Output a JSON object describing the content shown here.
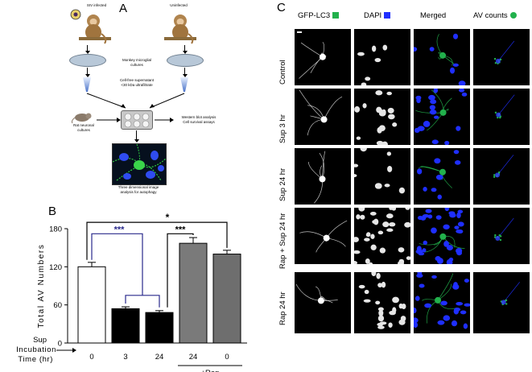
{
  "panels": {
    "a": "A",
    "b": "B",
    "c": "C"
  },
  "schematic": {
    "siv_label": "SIV infected",
    "uninfected_label": "Uninfected",
    "microglia_label": "Monkey microglial\ncultures",
    "supernatant_label": "Cell-free supernatant\n<30 kDa ultrafiltrate",
    "rat_label": "Rat neuronal\ncultures",
    "assay_label": "Western blot analysis\nCell survival assays",
    "imaging_label": "Three dimensional image\nanalysis for autophagy"
  },
  "micrographs": {
    "columns": [
      "GFP-LC3",
      "DAPI",
      "Merged",
      "AV counts"
    ],
    "rows": [
      "Control",
      "Sup 3 hr",
      "Sup 24 hr",
      "Rap + Sup 24 hr",
      "Rap 24 hr"
    ],
    "colors": {
      "gfp": "#22b14c",
      "dapi": "#1f2fff",
      "av": "#22b14c"
    }
  },
  "chart_data": {
    "type": "bar",
    "title": "",
    "ylabel": "Total AV Numbers",
    "xlabel": "Sup Incubation Time (hr)",
    "categories": [
      "0",
      "3",
      "24",
      "24",
      "0"
    ],
    "values": [
      120,
      54,
      48,
      157,
      140
    ],
    "errors": [
      7,
      3,
      3,
      9,
      6
    ],
    "bar_colors": [
      "#ffffff",
      "#000000",
      "#000000",
      "#7a7a7a",
      "#6e6e6e"
    ],
    "ylim": [
      0,
      180
    ],
    "yticks": [
      0,
      60,
      120,
      180
    ],
    "group_label": "+Rap",
    "group_start_index": 3,
    "significance": [
      {
        "label": "***",
        "color": "#2a2a8c",
        "from": 0,
        "to": [
          1,
          2
        ]
      },
      {
        "label": "***",
        "color": "#000000",
        "from": 2,
        "to": [
          3
        ]
      },
      {
        "label": "*",
        "color": "#000000",
        "from": 0,
        "to": [
          4
        ]
      }
    ]
  },
  "xaxis_label_lines": [
    "Sup",
    "Incubation",
    "Time (hr)"
  ]
}
